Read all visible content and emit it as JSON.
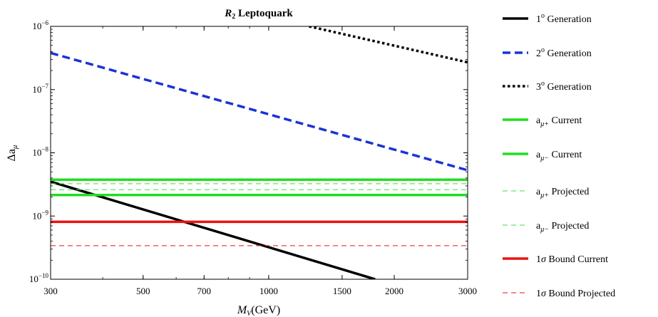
{
  "chart_data": {
    "type": "line",
    "title_italic": "R",
    "title_sub": "2",
    "title_rest": " Leptoquark",
    "xlabel_main": "M",
    "xlabel_sub": "V",
    "xlabel_unit": "(GeV)",
    "ylabel_main": "Δa",
    "ylabel_sub": "μ",
    "x_scale": "log",
    "y_scale": "log",
    "xlim": [
      300,
      3000
    ],
    "ylim": [
      1e-10,
      1e-06
    ],
    "x_ticks": [
      300,
      500,
      700,
      1000,
      1500,
      2000,
      3000
    ],
    "x_tick_labels": [
      "300",
      "500",
      "700",
      "1000",
      "1500",
      "2000",
      "3000"
    ],
    "y_ticks": [
      1e-10,
      1e-09,
      1e-08,
      1e-07,
      1e-06
    ],
    "y_tick_base": [
      "10",
      "10",
      "10",
      "10",
      "10"
    ],
    "y_tick_exp": [
      "−10",
      "−9",
      "−8",
      "−7",
      "−6"
    ],
    "grid": false,
    "legend_position": "right",
    "series": [
      {
        "sup": "o",
        "rest": " Generation",
        "prefix": "1",
        "color": "#000000",
        "dash": "solid",
        "width": 3.5,
        "points": [
          [
            300,
            3.5e-09
          ],
          [
            1800,
            1e-10
          ]
        ]
      },
      {
        "sup": "o",
        "rest": " Generation",
        "prefix": "2",
        "color": "#1a33d6",
        "dash": "dashed",
        "width": 3.5,
        "points": [
          [
            300,
            3.8e-07
          ],
          [
            3000,
            5.3e-09
          ]
        ]
      },
      {
        "sup": "o",
        "rest": " Generation",
        "prefix": "3",
        "color": "#000000",
        "dash": "dotted",
        "width": 3.5,
        "points": [
          [
            1250,
            1e-06
          ],
          [
            3000,
            2.7e-07
          ]
        ]
      },
      {
        "prefix": "a",
        "sub": "μ+",
        "rest": " Current",
        "color": "#22dd22",
        "dash": "solid",
        "width": 3.5,
        "points": [
          [
            300,
            3.75e-09
          ],
          [
            3000,
            3.75e-09
          ]
        ]
      },
      {
        "prefix": "a",
        "sub": "μ−",
        "rest": " Current",
        "color": "#22dd22",
        "dash": "solid",
        "width": 3.5,
        "points": [
          [
            300,
            2.15e-09
          ],
          [
            3000,
            2.15e-09
          ]
        ]
      },
      {
        "prefix": "a",
        "sub": "μ+",
        "rest": " Projected",
        "color": "#44dd44",
        "dash": "thin-dashed",
        "width": 1,
        "points": [
          [
            300,
            3.25e-09
          ],
          [
            3000,
            3.25e-09
          ]
        ]
      },
      {
        "prefix": "a",
        "sub": "μ−",
        "rest": " Projected",
        "color": "#44dd44",
        "dash": "thin-dashed",
        "width": 1,
        "points": [
          [
            300,
            2.6e-09
          ],
          [
            3000,
            2.6e-09
          ]
        ]
      },
      {
        "prefix": "1",
        "sigma": "σ",
        "rest": " Bound Current",
        "color": "#ee1111",
        "dash": "solid",
        "width": 3.5,
        "points": [
          [
            300,
            8.1e-10
          ],
          [
            3000,
            8.1e-10
          ]
        ]
      },
      {
        "prefix": "1",
        "sigma": "σ",
        "rest": " Bound Projected",
        "color": "#ee1111",
        "dash": "thin-dashed",
        "width": 1,
        "points": [
          [
            300,
            3.4e-10
          ],
          [
            3000,
            3.4e-10
          ]
        ]
      }
    ]
  }
}
